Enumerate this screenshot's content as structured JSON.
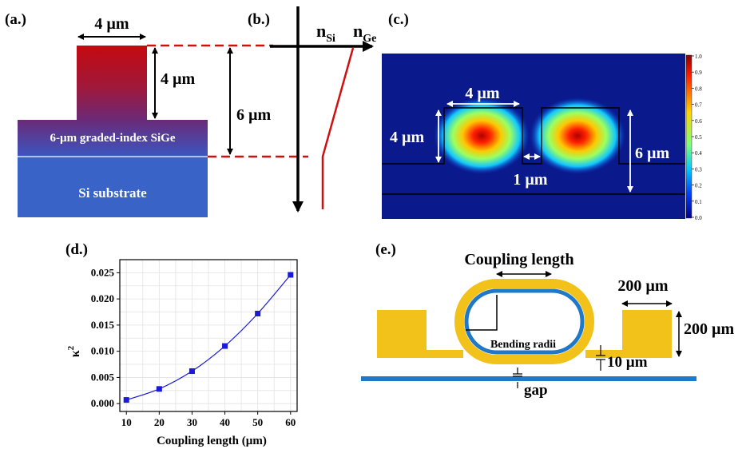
{
  "panel_a": {
    "label": "(a.)",
    "width_dim": "4 µm",
    "height_dim": "4 µm",
    "layer_label": "6-µm graded-index SiGe",
    "substrate_label": "Si substrate"
  },
  "panel_b": {
    "label": "(b.)",
    "n_si_base": "n",
    "n_si_sub": "Si",
    "n_ge_base": "n",
    "n_ge_sub": "Ge",
    "total_dim": "6 µm"
  },
  "panel_c": {
    "label": "(c.)",
    "width_dim": "4 µm",
    "height_dim": "4 µm",
    "gap_dim": "1 µm",
    "total_dim": "6 µm",
    "colorbar_ticks": [
      "1.0",
      "0.9",
      "0.8",
      "0.7",
      "0.6",
      "0.5",
      "0.4",
      "0.3",
      "0.2",
      "0.1",
      "0.0"
    ]
  },
  "panel_d": {
    "label": "(d.)",
    "ylabel_base": "κ",
    "ylabel_sup": "2",
    "xlabel": "Coupling length (µm)"
  },
  "panel_e": {
    "label": "(e.)",
    "coupling_length": "Coupling length",
    "pad_width": "200 µm",
    "pad_height": "200 µm",
    "bending_radii": "Bending radii",
    "width_10": "10 µm",
    "gap": "gap"
  },
  "colors": {
    "ridge_top": "#c40a10",
    "substrate": "#3a63c8",
    "field_bg": "#0a1a8c",
    "gold": "#f2c21a",
    "ring_blue": "#1f78c8",
    "dashed_red": "#d01010",
    "curve_blue": "#1a1ad8"
  },
  "chart_data": {
    "type": "line",
    "x": [
      10,
      20,
      30,
      40,
      50,
      60
    ],
    "y": [
      0.0007,
      0.0028,
      0.0062,
      0.011,
      0.0172,
      0.0246
    ],
    "xlabel": "Coupling length (µm)",
    "ylabel": "κ²",
    "xticks": [
      "10",
      "20",
      "30",
      "40",
      "50",
      "60"
    ],
    "yticks": [
      "0.000",
      "0.005",
      "0.010",
      "0.015",
      "0.020",
      "0.025"
    ],
    "xlim": [
      8,
      62
    ],
    "ylim": [
      -0.0015,
      0.0275
    ],
    "grid": true
  }
}
